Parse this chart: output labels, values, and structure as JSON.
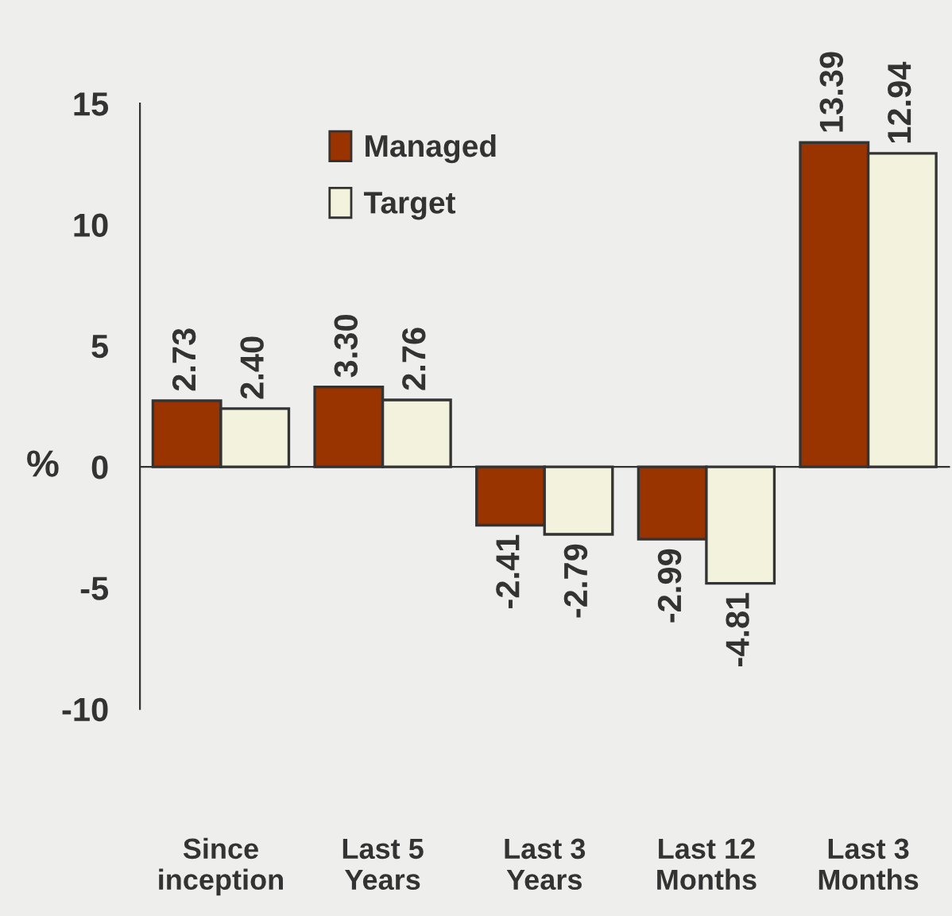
{
  "chart_data": {
    "type": "bar",
    "ylabel": "%",
    "categories": [
      "Since\ninception",
      "Last 5\nYears",
      "Last 3\nYears",
      "Last 12\nMonths",
      "Last 3\nMonths"
    ],
    "series": [
      {
        "name": "Managed",
        "color": "#993300",
        "values": [
          2.73,
          3.3,
          -2.41,
          -2.99,
          13.39
        ],
        "value_labels": [
          "2.73",
          "3.30",
          "-2.41",
          "-2.99",
          "13.39"
        ]
      },
      {
        "name": "Target",
        "color": "#f3f2dc",
        "values": [
          2.4,
          2.76,
          -2.79,
          -4.81,
          12.94
        ],
        "value_labels": [
          "2.40",
          "2.76",
          "-2.79",
          "-4.81",
          "12.94"
        ]
      }
    ],
    "ylim": [
      -10,
      15
    ],
    "yticks": [
      -10,
      -5,
      0,
      5,
      10,
      15
    ],
    "legend": "top left"
  }
}
